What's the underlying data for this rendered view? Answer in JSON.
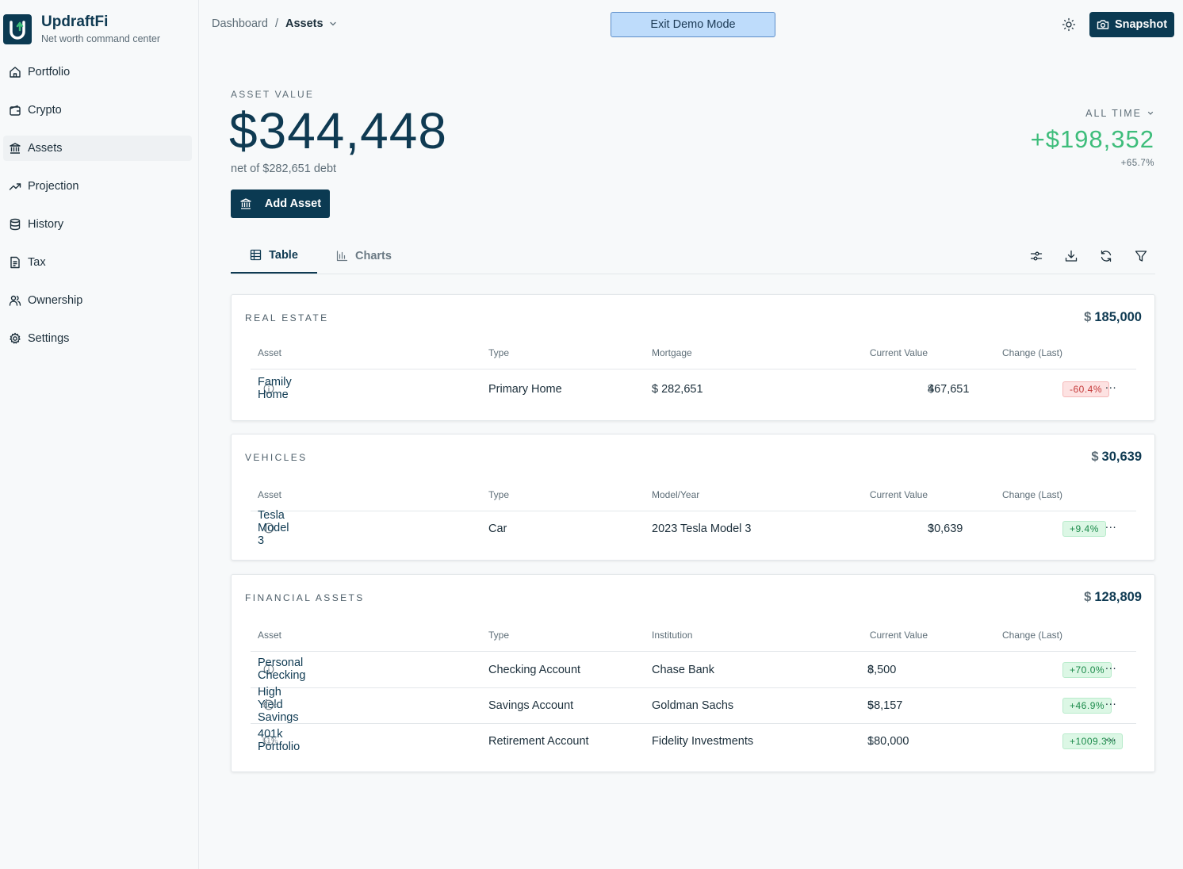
{
  "app": {
    "name": "UpdraftFi",
    "tagline": "Net worth command center"
  },
  "nav": [
    {
      "label": "Portfolio",
      "icon": "home-icon",
      "active": false
    },
    {
      "label": "Crypto",
      "icon": "wallet-icon",
      "active": false
    },
    {
      "label": "Assets",
      "icon": "bank-icon",
      "active": true
    },
    {
      "label": "Projection",
      "icon": "trending-up-icon",
      "active": false
    },
    {
      "label": "History",
      "icon": "database-icon",
      "active": false
    },
    {
      "label": "Tax",
      "icon": "document-icon",
      "active": false
    },
    {
      "label": "Ownership",
      "icon": "users-icon",
      "active": false
    },
    {
      "label": "Settings",
      "icon": "gear-icon",
      "active": false
    }
  ],
  "breadcrumb": {
    "root": "Dashboard",
    "separator": "/",
    "current": "Assets"
  },
  "header": {
    "exit_demo": "Exit Demo Mode",
    "snapshot": "Snapshot"
  },
  "hero": {
    "label": "ASSET VALUE",
    "value": "$344,448",
    "net_debt": "net of $282,651 debt",
    "add_asset": "Add Asset",
    "period": "ALL TIME",
    "gain": "+$198,352",
    "gain_pct": "+65.7%"
  },
  "tabs": {
    "table": "Table",
    "charts": "Charts"
  },
  "colors": {
    "brand": "#0b3a52",
    "positive": "#3ebd7b",
    "negative": "#c53b3b",
    "demo": "#bedcfb"
  },
  "sections": {
    "real_estate": {
      "title": "REAL ESTATE",
      "total_sym": "$",
      "total": "185,000",
      "headers": {
        "asset": "Asset",
        "type": "Type",
        "extra": "Mortgage",
        "value": "Current Value",
        "change": "Change (Last)"
      },
      "rows": [
        {
          "name": "Family Home",
          "type": "Primary Home",
          "extra": "$ 282,651",
          "value_sym": "$",
          "value": "467,651",
          "change": "-60.4%"
        }
      ]
    },
    "vehicles": {
      "title": "VEHICLES",
      "total_sym": "$",
      "total": "30,639",
      "headers": {
        "asset": "Asset",
        "type": "Type",
        "extra": "Model/Year",
        "value": "Current Value",
        "change": "Change (Last)"
      },
      "rows": [
        {
          "name": "Tesla Model 3",
          "type": "Car",
          "extra": "2023 Tesla Model 3",
          "value_sym": "$",
          "value": "30,639",
          "change": "+9.4%"
        }
      ]
    },
    "financial": {
      "title": "FINANCIAL ASSETS",
      "total_sym": "$",
      "total": "128,809",
      "headers": {
        "asset": "Asset",
        "type": "Type",
        "extra": "Institution",
        "value": "Current Value",
        "change": "Change (Last)"
      },
      "rows": [
        {
          "name": "Personal Checking",
          "share": "",
          "type": "Checking Account",
          "extra": "Chase Bank",
          "value_sym": "$",
          "value": "8,500",
          "change": "+70.0%"
        },
        {
          "name": "High Yield Savings",
          "share": "51%",
          "type": "Savings Account",
          "extra": "Goldman Sachs",
          "value_sym": "$",
          "value": "58,157",
          "change": "+46.9%"
        },
        {
          "name": "401k Portfolio",
          "share": "51%",
          "type": "Retirement Account",
          "extra": "Fidelity Investments",
          "value_sym": "$",
          "value": "180,000",
          "change": "+1009.3%"
        }
      ]
    }
  },
  "more_label": "···"
}
